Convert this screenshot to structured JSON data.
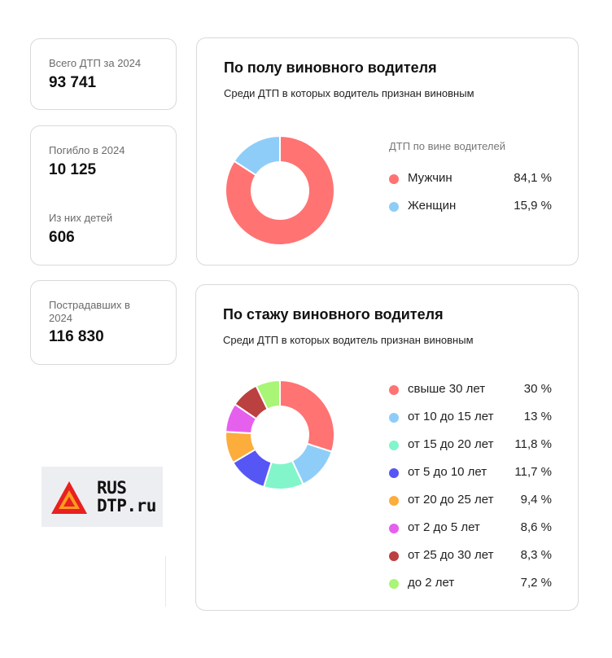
{
  "stats": {
    "total": {
      "label": "Всего ДТП за 2024",
      "value": "93 741"
    },
    "killed": {
      "label": "Погибло в 2024",
      "value": "10 125"
    },
    "children": {
      "label": "Из них детей",
      "value": "606"
    },
    "injured": {
      "label_line1": "Пострадавших в",
      "label_line2": "2024",
      "value": "116 830"
    }
  },
  "logo": {
    "line1": "RUS",
    "line2": "DTP.ru"
  },
  "chart_data": [
    {
      "type": "pie",
      "donut": true,
      "title": "По полу виновного водителя",
      "subtitle": "Среди ДТП в которых водитель признан виновным",
      "legend_title": "ДТП по вине водителей",
      "legend_position": "right",
      "categories": [
        "Мужчин",
        "Женщин"
      ],
      "values": [
        84.1,
        15.9
      ],
      "value_labels": [
        "84,1 %",
        "15,9 %"
      ],
      "colors": [
        "#ff7373",
        "#8ecdf8"
      ]
    },
    {
      "type": "pie",
      "donut": true,
      "title": "По стажу виновного водителя",
      "subtitle": "Среди ДТП в которых водитель признан виновным",
      "legend_position": "right",
      "categories": [
        "свыше 30 лет",
        "от 10 до 15 лет",
        "от 15 до 20 лет",
        "от 5 до 10 лет",
        "от 20 до 25 лет",
        "от 2 до 5 лет",
        "от 25 до 30 лет",
        "до 2 лет"
      ],
      "values": [
        30,
        13,
        11.8,
        11.7,
        9.4,
        8.6,
        8.3,
        7.2
      ],
      "value_labels": [
        "30 %",
        "13 %",
        "11,8 %",
        "11,7 %",
        "9,4 %",
        "8,6 %",
        "8,3 %",
        "7,2 %"
      ],
      "colors": [
        "#ff7373",
        "#8ecdf8",
        "#83f5cb",
        "#5656f5",
        "#fcad3c",
        "#e660ee",
        "#bb4040",
        "#a9f575"
      ]
    }
  ]
}
